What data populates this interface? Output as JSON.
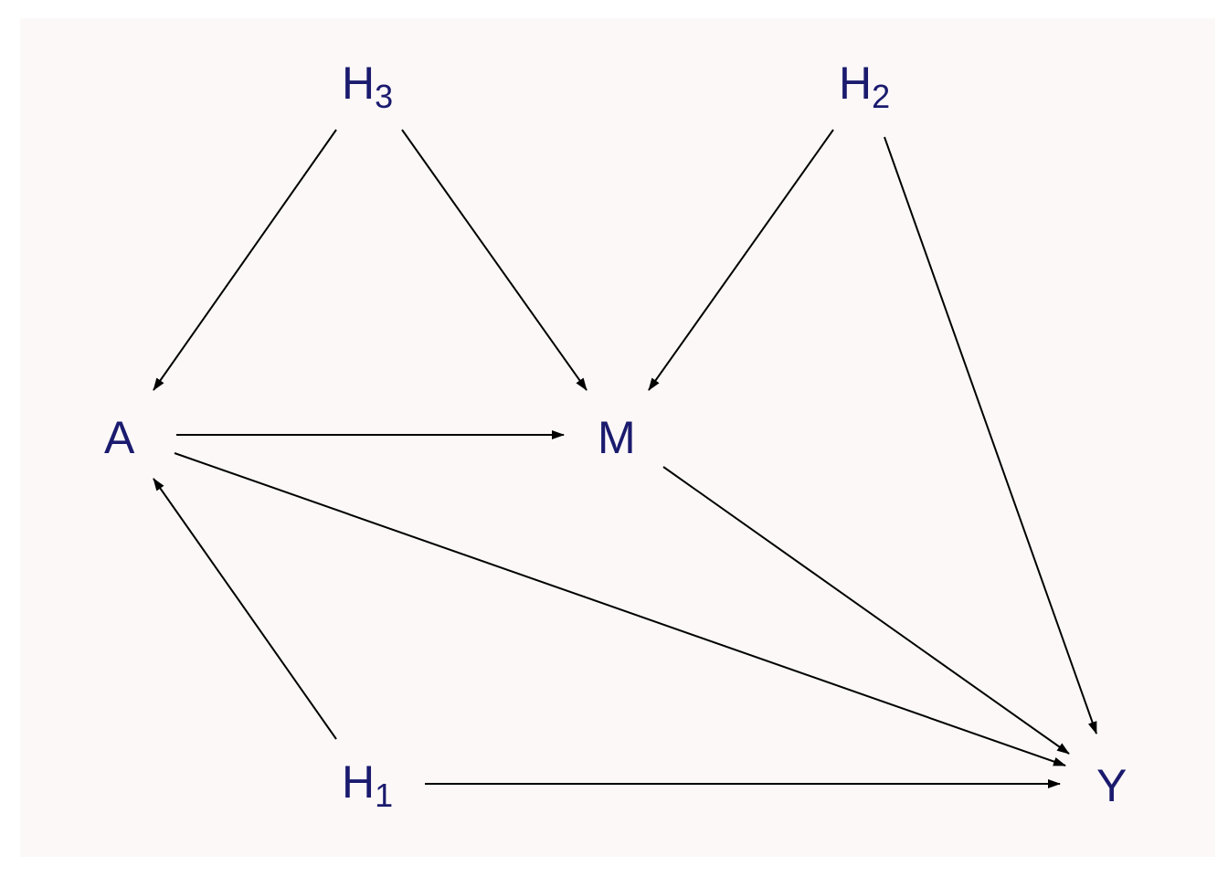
{
  "diagram": {
    "node_color": "#1a1a6e",
    "edge_color": "#000000",
    "background": "#fcf8f8",
    "nodes": {
      "h3": {
        "label": "H",
        "subscript": "3"
      },
      "h2": {
        "label": "H",
        "subscript": "2"
      },
      "a": {
        "label": "A",
        "subscript": ""
      },
      "m": {
        "label": "M",
        "subscript": ""
      },
      "h1": {
        "label": "H",
        "subscript": "1"
      },
      "y": {
        "label": "Y",
        "subscript": ""
      }
    },
    "edges": [
      {
        "from": "H3",
        "to": "A"
      },
      {
        "from": "H3",
        "to": "M"
      },
      {
        "from": "H2",
        "to": "M"
      },
      {
        "from": "H2",
        "to": "Y"
      },
      {
        "from": "A",
        "to": "M"
      },
      {
        "from": "A",
        "to": "Y"
      },
      {
        "from": "M",
        "to": "Y"
      },
      {
        "from": "H1",
        "to": "A"
      },
      {
        "from": "H1",
        "to": "Y"
      }
    ]
  }
}
